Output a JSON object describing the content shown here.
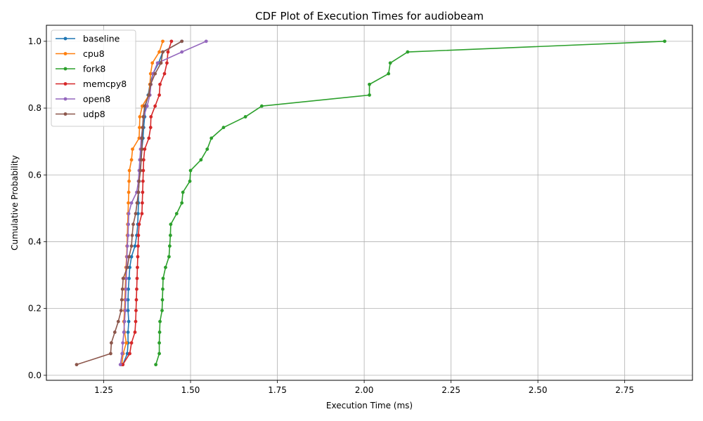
{
  "chart_data": {
    "type": "line",
    "title": "CDF Plot of Execution Times for audiobeam",
    "xlabel": "Execution Time (ms)",
    "ylabel": "Cumulative Probability",
    "xlim": [
      1.085,
      2.945
    ],
    "ylim": [
      -0.015,
      1.048
    ],
    "xticks": [
      1.25,
      1.5,
      1.75,
      2.0,
      2.25,
      2.5,
      2.75
    ],
    "xtick_labels": [
      "1.25",
      "1.50",
      "1.75",
      "2.00",
      "2.25",
      "2.50",
      "2.75"
    ],
    "yticks": [
      0.0,
      0.2,
      0.4,
      0.6,
      0.8,
      1.0
    ],
    "ytick_labels": [
      "0.0",
      "0.2",
      "0.4",
      "0.6",
      "0.8",
      "1.0"
    ],
    "grid": true,
    "legend_position": "upper-left",
    "marker": "circle",
    "y": [
      0.032,
      0.065,
      0.097,
      0.129,
      0.161,
      0.194,
      0.226,
      0.258,
      0.29,
      0.323,
      0.355,
      0.387,
      0.419,
      0.452,
      0.484,
      0.516,
      0.548,
      0.581,
      0.613,
      0.645,
      0.677,
      0.71,
      0.742,
      0.774,
      0.806,
      0.839,
      0.871,
      0.903,
      0.935,
      0.968,
      1.0
    ],
    "series": [
      {
        "name": "baseline",
        "color": "#1f77b4",
        "x": [
          1.305,
          1.318,
          1.32,
          1.32,
          1.322,
          1.32,
          1.32,
          1.321,
          1.323,
          1.325,
          1.33,
          1.34,
          1.345,
          1.348,
          1.349,
          1.35,
          1.35,
          1.352,
          1.353,
          1.354,
          1.36,
          1.363,
          1.365,
          1.368,
          1.37,
          1.378,
          1.383,
          1.392,
          1.408,
          1.42,
          1.475
        ]
      },
      {
        "name": "cpu8",
        "color": "#ff7f0e",
        "x": [
          1.302,
          1.306,
          1.315,
          1.31,
          1.308,
          1.31,
          1.311,
          1.312,
          1.313,
          1.314,
          1.316,
          1.317,
          1.318,
          1.319,
          1.32,
          1.321,
          1.322,
          1.323,
          1.324,
          1.33,
          1.333,
          1.352,
          1.353,
          1.354,
          1.361,
          1.38,
          1.383,
          1.385,
          1.39,
          1.41,
          1.42
        ]
      },
      {
        "name": "fork8",
        "color": "#2ca02c",
        "x": [
          1.4,
          1.41,
          1.41,
          1.411,
          1.412,
          1.418,
          1.419,
          1.42,
          1.421,
          1.428,
          1.438,
          1.44,
          1.442,
          1.443,
          1.46,
          1.475,
          1.478,
          1.498,
          1.5,
          1.53,
          1.548,
          1.56,
          1.595,
          1.658,
          1.705,
          2.015,
          2.015,
          2.07,
          2.075,
          2.125,
          2.865
        ]
      },
      {
        "name": "memcpy8",
        "color": "#d62728",
        "x": [
          1.305,
          1.325,
          1.33,
          1.34,
          1.342,
          1.343,
          1.344,
          1.345,
          1.346,
          1.347,
          1.348,
          1.349,
          1.35,
          1.352,
          1.36,
          1.361,
          1.362,
          1.363,
          1.364,
          1.365,
          1.368,
          1.38,
          1.385,
          1.386,
          1.398,
          1.41,
          1.412,
          1.425,
          1.432,
          1.435,
          1.445
        ]
      },
      {
        "name": "open8",
        "color": "#9467bd",
        "x": [
          1.298,
          1.303,
          1.305,
          1.308,
          1.31,
          1.312,
          1.313,
          1.314,
          1.315,
          1.316,
          1.317,
          1.318,
          1.32,
          1.321,
          1.322,
          1.33,
          1.345,
          1.35,
          1.352,
          1.354,
          1.356,
          1.358,
          1.362,
          1.365,
          1.375,
          1.383,
          1.386,
          1.392,
          1.405,
          1.475,
          1.545
        ]
      },
      {
        "name": "udp8",
        "color": "#8c564b",
        "x": [
          1.172,
          1.27,
          1.272,
          1.282,
          1.292,
          1.3,
          1.302,
          1.304,
          1.306,
          1.318,
          1.323,
          1.33,
          1.332,
          1.335,
          1.342,
          1.346,
          1.35,
          1.352,
          1.356,
          1.358,
          1.36,
          1.36,
          1.362,
          1.364,
          1.368,
          1.38,
          1.385,
          1.398,
          1.415,
          1.42,
          1.475
        ]
      }
    ]
  }
}
